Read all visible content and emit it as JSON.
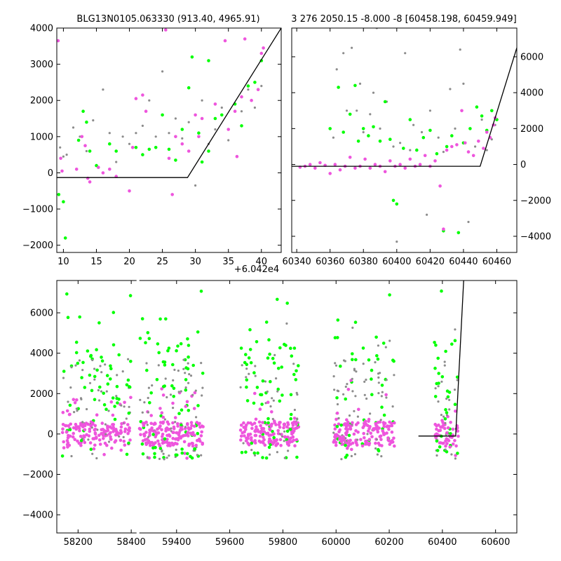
{
  "colors": {
    "gray": "#8c8c8c",
    "green": "#00ff00",
    "magenta": "#ee55dd",
    "model": "#000000"
  },
  "chart_data": [
    {
      "id": "top-left",
      "type": "scatter",
      "title": "BLG13N0105.063330 (913.40, 4965.91)",
      "xlim": [
        9,
        43
      ],
      "ylim": [
        -2200,
        4000
      ],
      "xticks": [
        10,
        15,
        20,
        25,
        30,
        35,
        40
      ],
      "yticks": [
        -2000,
        -1000,
        0,
        1000,
        2000,
        3000,
        4000
      ],
      "x_offset_label": "+6.042e4",
      "model": [
        [
          9,
          -130
        ],
        [
          28.8,
          -130
        ],
        [
          43,
          4000
        ]
      ],
      "series": [
        {
          "color": "gray",
          "points": [
            [
              9.5,
              700
            ],
            [
              10,
              450
            ],
            [
              10.5,
              500
            ],
            [
              11.5,
              1250
            ],
            [
              12.5,
              1000
            ],
            [
              13.5,
              600
            ],
            [
              14.5,
              1450
            ],
            [
              16,
              2300
            ],
            [
              17,
              1100
            ],
            [
              18,
              300
            ],
            [
              19,
              1000
            ],
            [
              20,
              800
            ],
            [
              21,
              1100
            ],
            [
              22,
              1300
            ],
            [
              23,
              2000
            ],
            [
              24,
              1000
            ],
            [
              25,
              2800
            ],
            [
              26,
              1100
            ],
            [
              27,
              1500
            ],
            [
              28,
              950
            ],
            [
              29,
              1400
            ],
            [
              30,
              -350
            ],
            [
              31,
              2000
            ],
            [
              32,
              800
            ],
            [
              33,
              1200
            ],
            [
              34,
              1800
            ],
            [
              35,
              900
            ],
            [
              36,
              1900
            ],
            [
              37,
              1700
            ],
            [
              38,
              2300
            ],
            [
              39,
              1800
            ],
            [
              40,
              2400
            ]
          ]
        },
        {
          "color": "green",
          "points": [
            [
              9.3,
              -600
            ],
            [
              10,
              -800
            ],
            [
              10.3,
              -1800
            ],
            [
              12.3,
              900
            ],
            [
              13,
              1700
            ],
            [
              13.5,
              1400
            ],
            [
              14,
              600
            ],
            [
              15,
              200
            ],
            [
              17,
              800
            ],
            [
              18,
              600
            ],
            [
              21,
              700
            ],
            [
              22,
              500
            ],
            [
              23,
              650
            ],
            [
              24,
              700
            ],
            [
              25,
              1600
            ],
            [
              26,
              650
            ],
            [
              27,
              350
            ],
            [
              28,
              1200
            ],
            [
              29,
              2350
            ],
            [
              29.5,
              3200
            ],
            [
              30.5,
              1100
            ],
            [
              31,
              300
            ],
            [
              32,
              3100
            ],
            [
              32,
              600
            ],
            [
              33,
              1500
            ],
            [
              34,
              1600
            ],
            [
              36,
              1900
            ],
            [
              37,
              1300
            ],
            [
              38,
              2400
            ],
            [
              39,
              2500
            ],
            [
              40,
              3100
            ]
          ]
        },
        {
          "color": "magenta",
          "points": [
            [
              9.2,
              3650
            ],
            [
              9.6,
              400
            ],
            [
              9.8,
              50
            ],
            [
              12,
              100
            ],
            [
              12.8,
              1000
            ],
            [
              13.3,
              750
            ],
            [
              13.7,
              -150
            ],
            [
              14,
              -250
            ],
            [
              15.3,
              150
            ],
            [
              16,
              0
            ],
            [
              17,
              100
            ],
            [
              18,
              -100
            ],
            [
              20,
              -500
            ],
            [
              20.5,
              700
            ],
            [
              21,
              2050
            ],
            [
              22,
              2150
            ],
            [
              22.5,
              1700
            ],
            [
              25.5,
              3950
            ],
            [
              26,
              400
            ],
            [
              26.5,
              -600
            ],
            [
              27,
              1000
            ],
            [
              28,
              800
            ],
            [
              29,
              600
            ],
            [
              30,
              1600
            ],
            [
              30.5,
              1000
            ],
            [
              31,
              1500
            ],
            [
              33,
              1900
            ],
            [
              34.5,
              3650
            ],
            [
              35,
              1200
            ],
            [
              36,
              1700
            ],
            [
              36.3,
              450
            ],
            [
              37,
              2100
            ],
            [
              37.5,
              3700
            ],
            [
              38.5,
              2000
            ],
            [
              39.5,
              2300
            ],
            [
              40,
              3300
            ],
            [
              40.3,
              3450
            ]
          ]
        }
      ]
    },
    {
      "id": "top-right",
      "type": "scatter",
      "title": "3 276 2050.15 -8.000 -8 [60458.198, 60459.949]",
      "xlim": [
        60337,
        60472
      ],
      "ylim": [
        -4900,
        7600
      ],
      "xticks": [
        60340,
        60360,
        60380,
        60400,
        60420,
        60440,
        60460
      ],
      "yticks": [
        -4000,
        -2000,
        0,
        2000,
        4000,
        6000
      ],
      "model": [
        [
          60337,
          -100
        ],
        [
          60450,
          -100
        ],
        [
          60472,
          6500
        ]
      ],
      "series": [
        {
          "color": "gray",
          "points": [
            [
              60362,
              1500
            ],
            [
              60364,
              5300
            ],
            [
              60368,
              6200
            ],
            [
              60370,
              3000
            ],
            [
              60373,
              6500
            ],
            [
              60376,
              3000
            ],
            [
              60378,
              4500
            ],
            [
              60380,
              1800
            ],
            [
              60384,
              2800
            ],
            [
              60386,
              4000
            ],
            [
              60388,
              7600
            ],
            [
              60390,
              2000
            ],
            [
              60394,
              3500
            ],
            [
              60398,
              1000
            ],
            [
              60400,
              -4300
            ],
            [
              60402,
              1200
            ],
            [
              60405,
              6200
            ],
            [
              60408,
              800
            ],
            [
              60410,
              2200
            ],
            [
              60415,
              1800
            ],
            [
              60418,
              -2800
            ],
            [
              60420,
              3000
            ],
            [
              60425,
              1500
            ],
            [
              60428,
              700
            ],
            [
              60432,
              4200
            ],
            [
              60435,
              2000
            ],
            [
              60438,
              6400
            ],
            [
              60440,
              4500
            ],
            [
              60443,
              -3200
            ],
            [
              60447,
              1000
            ],
            [
              60451,
              2500
            ],
            [
              60454,
              800
            ],
            [
              60457,
              1400
            ],
            [
              60459,
              2200
            ]
          ]
        },
        {
          "color": "green",
          "points": [
            [
              60360,
              2000
            ],
            [
              60365,
              4300
            ],
            [
              60368,
              1800
            ],
            [
              60372,
              2800
            ],
            [
              60375,
              4400
            ],
            [
              60377,
              1300
            ],
            [
              60380,
              2000
            ],
            [
              60383,
              1600
            ],
            [
              60386,
              2100
            ],
            [
              60390,
              1300
            ],
            [
              60393,
              3500
            ],
            [
              60396,
              1400
            ],
            [
              60398,
              -2000
            ],
            [
              60400,
              -2200
            ],
            [
              60404,
              900
            ],
            [
              60408,
              2500
            ],
            [
              60412,
              800
            ],
            [
              60416,
              1500
            ],
            [
              60420,
              1900
            ],
            [
              60424,
              600
            ],
            [
              60428,
              -3700
            ],
            [
              60430,
              1000
            ],
            [
              60433,
              1600
            ],
            [
              60437,
              -3800
            ],
            [
              60440,
              1200
            ],
            [
              60444,
              2000
            ],
            [
              60448,
              3200
            ],
            [
              60451,
              2700
            ],
            [
              60454,
              1900
            ],
            [
              60457,
              3000
            ],
            [
              60460,
              2500
            ]
          ]
        },
        {
          "color": "magenta",
          "points": [
            [
              60342,
              -150
            ],
            [
              60345,
              -100
            ],
            [
              60348,
              0
            ],
            [
              60351,
              -200
            ],
            [
              60354,
              100
            ],
            [
              60357,
              -50
            ],
            [
              60360,
              -500
            ],
            [
              60363,
              0
            ],
            [
              60366,
              -300
            ],
            [
              60369,
              -100
            ],
            [
              60372,
              400
            ],
            [
              60375,
              -200
            ],
            [
              60378,
              -100
            ],
            [
              60381,
              300
            ],
            [
              60384,
              -200
            ],
            [
              60387,
              0
            ],
            [
              60390,
              -100
            ],
            [
              60393,
              -400
            ],
            [
              60396,
              200
            ],
            [
              60399,
              -100
            ],
            [
              60402,
              0
            ],
            [
              60405,
              -200
            ],
            [
              60408,
              300
            ],
            [
              60411,
              -100
            ],
            [
              60414,
              0
            ],
            [
              60417,
              500
            ],
            [
              60420,
              -100
            ],
            [
              60423,
              200
            ],
            [
              60426,
              -1200
            ],
            [
              60428,
              -3600
            ],
            [
              60430,
              800
            ],
            [
              60433,
              1000
            ],
            [
              60436,
              1100
            ],
            [
              60439,
              3000
            ],
            [
              60441,
              1200
            ],
            [
              60443,
              700
            ],
            [
              60446,
              500
            ],
            [
              60449,
              1300
            ],
            [
              60452,
              900
            ],
            [
              60454,
              1800
            ],
            [
              60456,
              1500
            ],
            [
              60458,
              2200
            ],
            [
              60459,
              2600
            ]
          ]
        }
      ]
    },
    {
      "id": "bottom",
      "type": "scatter",
      "xlim": [
        58120,
        60680
      ],
      "ylim": [
        -4900,
        7600
      ],
      "xticks": [
        58200,
        58400,
        59400,
        59600,
        59800,
        60000,
        60200,
        60400,
        60600
      ],
      "yticks": [
        -4000,
        -2000,
        0,
        2000,
        4000,
        6000
      ],
      "model": [
        [
          60310,
          -100
        ],
        [
          60450,
          -100
        ],
        [
          60480,
          7600
        ]
      ],
      "break": {
        "gap_from": 58420,
        "gap_to": 59260
      },
      "seasons": [
        {
          "x_from": 58140,
          "x_to": 58400,
          "density": 260
        },
        {
          "x_from": 59260,
          "x_to": 59500,
          "density": 300
        },
        {
          "x_from": 59640,
          "x_to": 59860,
          "density": 250
        },
        {
          "x_from": 59990,
          "x_to": 60220,
          "density": 260
        },
        {
          "x_from": 60370,
          "x_to": 60460,
          "density": 110
        }
      ]
    }
  ]
}
